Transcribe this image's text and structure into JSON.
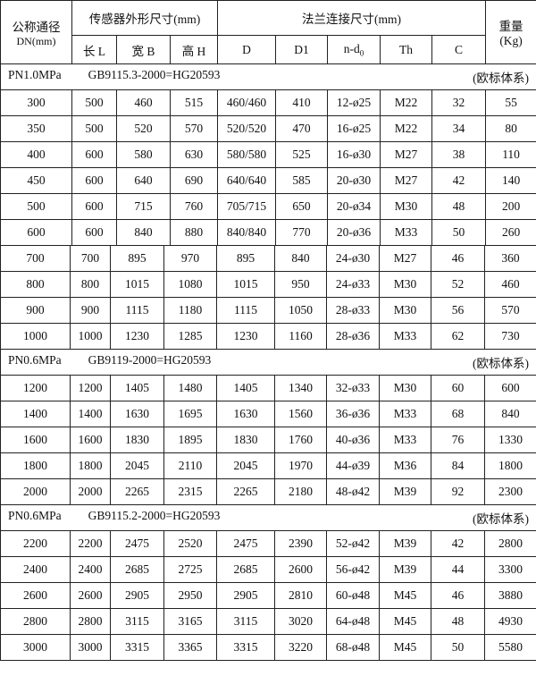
{
  "header": {
    "dn_label": "公称通径",
    "dn_unit": "DN(mm)",
    "sensor_group": "传感器外形尺寸(mm)",
    "flange_group": "法兰连接尺寸(mm)",
    "weight_label": "重量",
    "weight_unit": "(Kg)",
    "columns": [
      "长 L",
      "宽 B",
      "高 H",
      "D",
      "D1",
      "n-d",
      "Th",
      "C"
    ],
    "nd_subscript": "0"
  },
  "sections": [
    {
      "pressure": "PN1.0MPa",
      "standard": "GB9115.3-2000=HG20593",
      "system": "(欧标体系)",
      "rows": [
        [
          "300",
          "500",
          "460",
          "515",
          "460/460",
          "410",
          "12-ø25",
          "M22",
          "32",
          "55"
        ],
        [
          "350",
          "500",
          "520",
          "570",
          "520/520",
          "470",
          "16-ø25",
          "M22",
          "34",
          "80"
        ],
        [
          "400",
          "600",
          "580",
          "630",
          "580/580",
          "525",
          "16-ø30",
          "M27",
          "38",
          "110"
        ],
        [
          "450",
          "600",
          "640",
          "690",
          "640/640",
          "585",
          "20-ø30",
          "M27",
          "42",
          "140"
        ],
        [
          "500",
          "600",
          "715",
          "760",
          "705/715",
          "650",
          "20-ø34",
          "M30",
          "48",
          "200"
        ],
        [
          "600",
          "600",
          "840",
          "880",
          "840/840",
          "770",
          "20-ø36",
          "M33",
          "50",
          "260"
        ],
        [
          "700",
          "700",
          "895",
          "970",
          "895",
          "840",
          "24-ø30",
          "M27",
          "46",
          "360"
        ],
        [
          "800",
          "800",
          "1015",
          "1080",
          "1015",
          "950",
          "24-ø33",
          "M30",
          "52",
          "460"
        ],
        [
          "900",
          "900",
          "1115",
          "1180",
          "1115",
          "1050",
          "28-ø33",
          "M30",
          "56",
          "570"
        ],
        [
          "1000",
          "1000",
          "1230",
          "1285",
          "1230",
          "1160",
          "28-ø36",
          "M33",
          "62",
          "730"
        ]
      ]
    },
    {
      "pressure": "PN0.6MPa",
      "standard": "GB9119-2000=HG20593",
      "system": "(欧标体系)",
      "rows": [
        [
          "1200",
          "1200",
          "1405",
          "1480",
          "1405",
          "1340",
          "32-ø33",
          "M30",
          "60",
          "600"
        ],
        [
          "1400",
          "1400",
          "1630",
          "1695",
          "1630",
          "1560",
          "36-ø36",
          "M33",
          "68",
          "840"
        ],
        [
          "1600",
          "1600",
          "1830",
          "1895",
          "1830",
          "1760",
          "40-ø36",
          "M33",
          "76",
          "1330"
        ],
        [
          "1800",
          "1800",
          "2045",
          "2110",
          "2045",
          "1970",
          "44-ø39",
          "M36",
          "84",
          "1800"
        ],
        [
          "2000",
          "2000",
          "2265",
          "2315",
          "2265",
          "2180",
          "48-ø42",
          "M39",
          "92",
          "2300"
        ]
      ]
    },
    {
      "pressure": "PN0.6MPa",
      "standard": "GB9115.2-2000=HG20593",
      "system": "(欧标体系)",
      "rows": [
        [
          "2200",
          "2200",
          "2475",
          "2520",
          "2475",
          "2390",
          "52-ø42",
          "M39",
          "42",
          "2800"
        ],
        [
          "2400",
          "2400",
          "2685",
          "2725",
          "2685",
          "2600",
          "56-ø42",
          "M39",
          "44",
          "3300"
        ],
        [
          "2600",
          "2600",
          "2905",
          "2950",
          "2905",
          "2810",
          "60-ø48",
          "M45",
          "46",
          "3880"
        ],
        [
          "2800",
          "2800",
          "3115",
          "3165",
          "3115",
          "3020",
          "64-ø48",
          "M45",
          "48",
          "4930"
        ],
        [
          "3000",
          "3000",
          "3315",
          "3365",
          "3315",
          "3220",
          "68-ø48",
          "M45",
          "50",
          "5580"
        ]
      ]
    }
  ]
}
